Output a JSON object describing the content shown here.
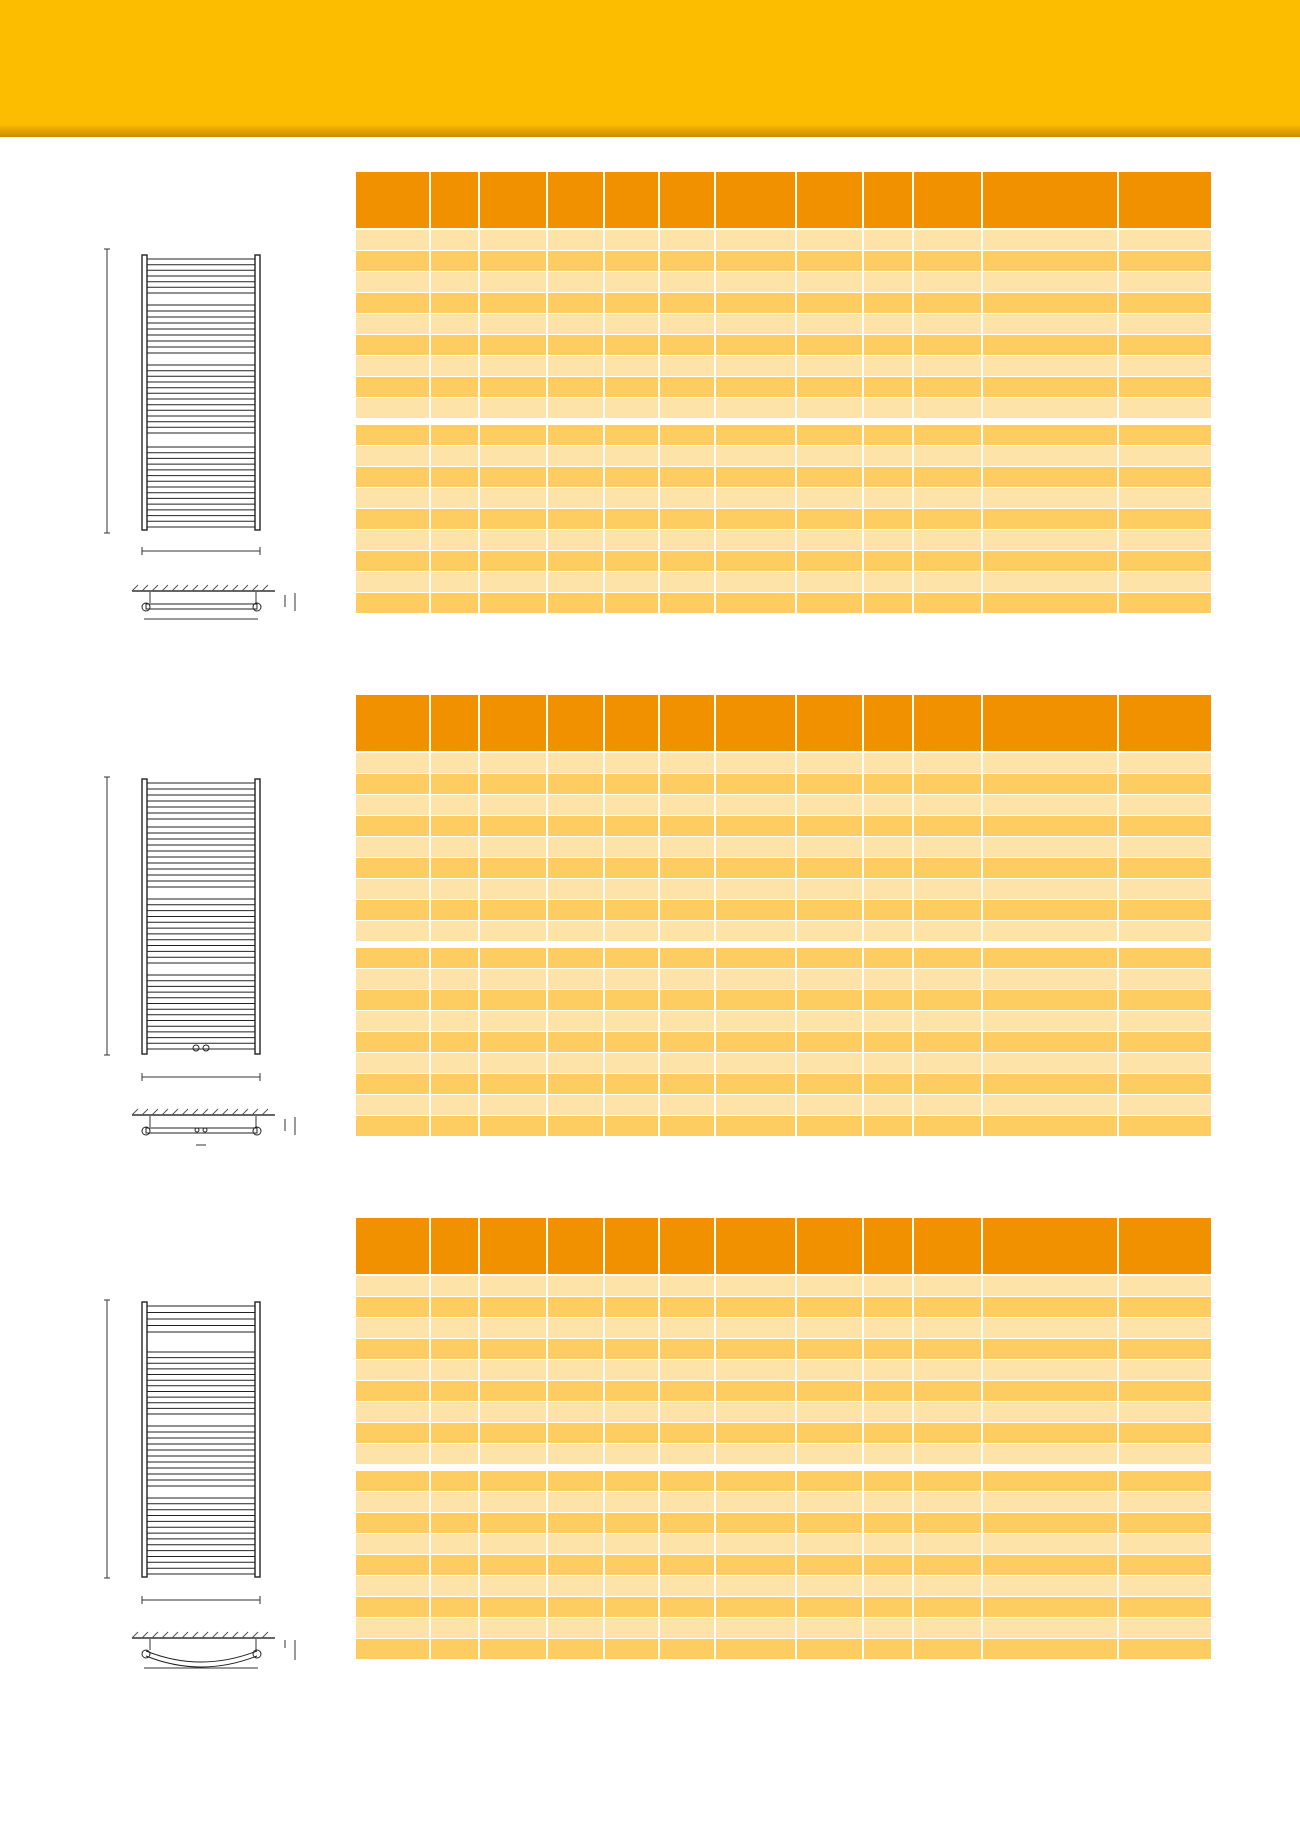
{
  "page": {
    "header_band_color": "#fcbd00",
    "table_header_color": "#f29100",
    "row_light_color": "#fde3a8",
    "row_dark_color": "#fdcd62"
  },
  "tables": [
    {
      "name": "radiator-straight",
      "columns": 12,
      "group1_rows": 9,
      "group2_rows": 9
    },
    {
      "name": "radiator-straight-center-connection",
      "columns": 12,
      "group1_rows": 9,
      "group2_rows": 9
    },
    {
      "name": "radiator-curved",
      "columns": 12,
      "group1_rows": 9,
      "group2_rows": 9
    }
  ]
}
